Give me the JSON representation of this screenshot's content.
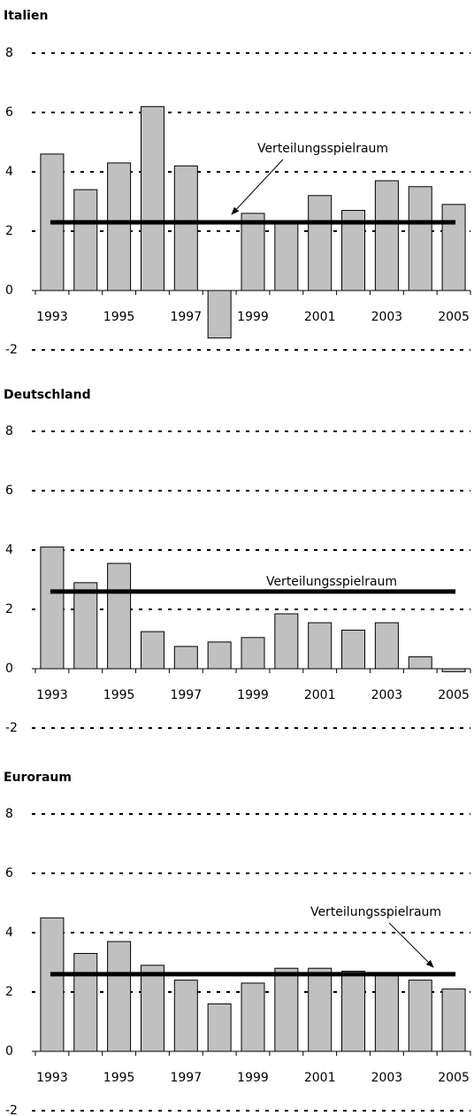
{
  "chart_data": [
    {
      "type": "bar",
      "title": "Italien",
      "categories": [
        "1993",
        null,
        "1995",
        null,
        "1997",
        null,
        "1999",
        null,
        "2001",
        null,
        "2003",
        null,
        "2005"
      ],
      "values": [
        4.6,
        3.4,
        4.3,
        6.2,
        4.2,
        -1.6,
        2.6,
        2.3,
        3.2,
        2.7,
        3.7,
        3.5,
        2.9
      ],
      "color": "#c0c0c0",
      "reference_value": 2.3,
      "annotation": "Verteilungsspielraum",
      "ylim": [
        -2,
        8
      ],
      "yticks": [
        -2,
        0,
        2,
        4,
        6,
        8
      ],
      "grid": true
    },
    {
      "type": "bar",
      "title": "Deutschland",
      "categories": [
        "1993",
        null,
        "1995",
        null,
        "1997",
        null,
        "1999",
        null,
        "2001",
        null,
        "2003",
        null,
        "2005"
      ],
      "values": [
        4.1,
        2.9,
        3.55,
        1.25,
        0.75,
        0.9,
        1.05,
        1.85,
        1.55,
        1.3,
        1.55,
        0.4,
        -0.1
      ],
      "color": "#c0c0c0",
      "reference_value": 2.6,
      "annotation": "Verteilungsspielraum",
      "ylim": [
        -2,
        8
      ],
      "yticks": [
        -2,
        0,
        2,
        4,
        6,
        8
      ],
      "grid": true
    },
    {
      "type": "bar",
      "title": "Euroraum",
      "categories": [
        "1993",
        null,
        "1995",
        null,
        "1997",
        null,
        "1999",
        null,
        "2001",
        null,
        "2003",
        null,
        "2005"
      ],
      "values": [
        4.5,
        3.3,
        3.7,
        2.9,
        2.4,
        1.6,
        2.3,
        2.8,
        2.8,
        2.7,
        2.6,
        2.4,
        2.1
      ],
      "color": "#c0c0c0",
      "reference_value": 2.6,
      "annotation": "Verteilungsspielraum",
      "ylim": [
        -2,
        8
      ],
      "yticks": [
        -2,
        0,
        2,
        4,
        6,
        8
      ],
      "grid": true
    }
  ]
}
